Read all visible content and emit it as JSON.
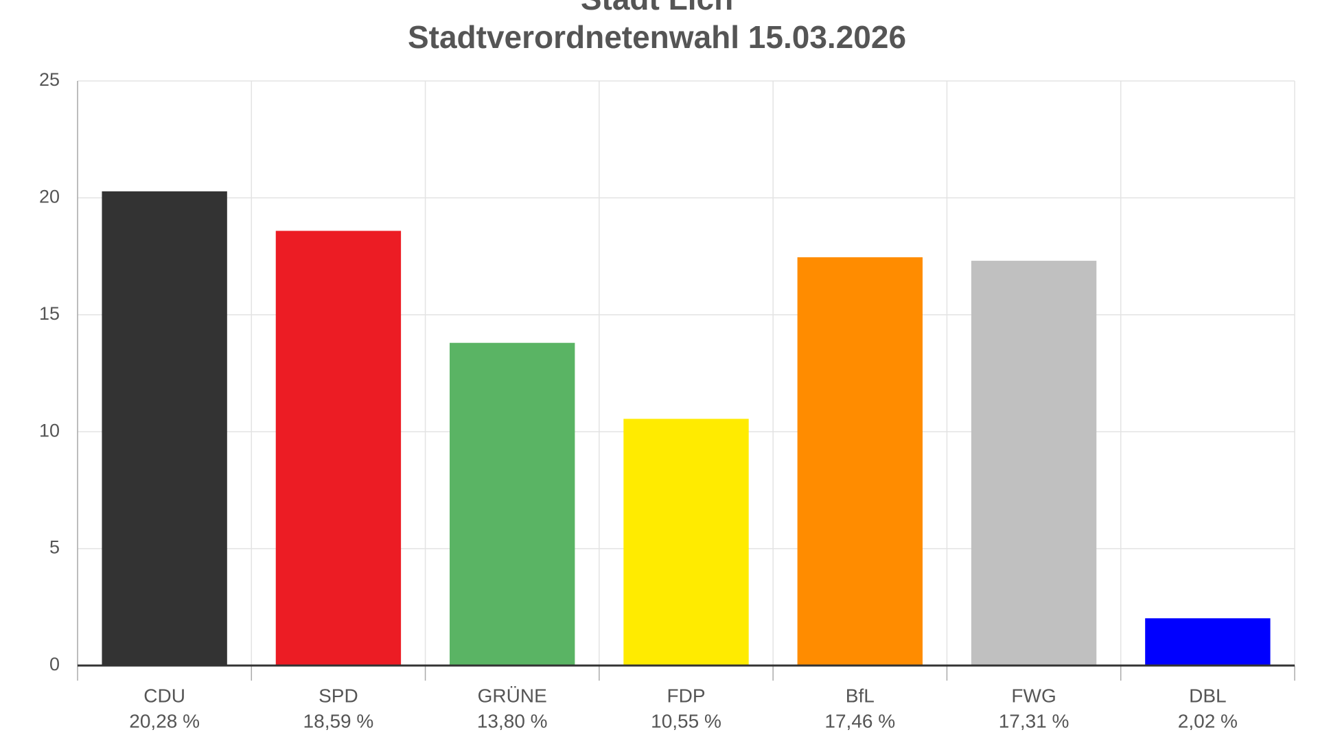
{
  "chart_data": {
    "type": "bar",
    "title": "Stadt Lich",
    "subtitle": "Stadtverordnetenwahl 15.03.2026",
    "categories": [
      "CDU",
      "SPD",
      "GRÜNE",
      "FDP",
      "BfL",
      "FWG",
      "DBL"
    ],
    "values": [
      20.28,
      18.59,
      13.8,
      10.55,
      17.46,
      17.31,
      2.02
    ],
    "value_labels": [
      "20,28 %",
      "18,59 %",
      "13,80 %",
      "10,55 %",
      "17,46 %",
      "17,31 %",
      "2,02 %"
    ],
    "colors": [
      "#333333",
      "#ec1c24",
      "#5ab464",
      "#ffeb00",
      "#ff8c00",
      "#c0c0c0",
      "#0000ff"
    ],
    "ylim": [
      0,
      25
    ],
    "yticks": [
      0,
      5,
      10,
      15,
      20,
      25
    ],
    "grid": true
  }
}
